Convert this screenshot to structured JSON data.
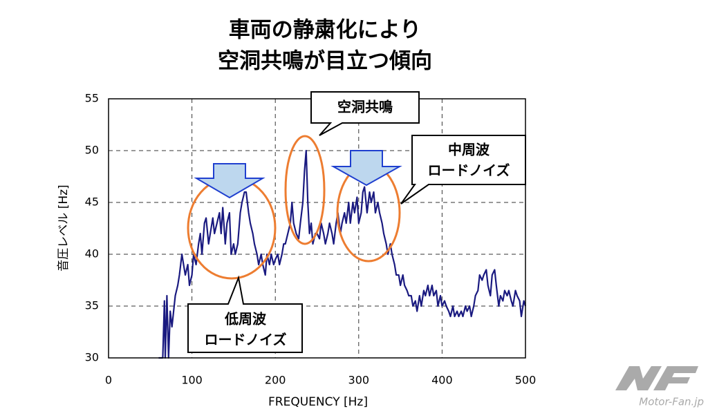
{
  "chart_data": {
    "type": "line",
    "title_lines": [
      "車両の静粛化により",
      "空洞共鳴が目立つ傾向"
    ],
    "x_label": "FREQUENCY [Hz]",
    "y_label": "音圧レベル [Hz]",
    "annotations": [
      {
        "lines": [
          "空洞共鳴"
        ]
      },
      {
        "lines": [
          "中周波",
          "ロードノイズ"
        ]
      },
      {
        "lines": [
          "低周波",
          "ロードノイズ"
        ]
      }
    ],
    "watermark": "Motor-Fan.jp",
    "color": "#1a1a80",
    "grid": true,
    "xlim": [
      0,
      500
    ],
    "xticks": [
      0,
      100,
      200,
      300,
      400,
      500
    ],
    "ylim": [
      30,
      55
    ],
    "yticks": [
      30,
      35,
      40,
      45,
      50,
      55
    ],
    "x": [
      60,
      65,
      67,
      68,
      70,
      72,
      74,
      76,
      80,
      83,
      85,
      88,
      90,
      92,
      95,
      97,
      100,
      102,
      105,
      108,
      110,
      112,
      115,
      117,
      120,
      122,
      125,
      127,
      130,
      133,
      135,
      137,
      140,
      142,
      145,
      147,
      150,
      152,
      155,
      158,
      160,
      163,
      165,
      168,
      170,
      173,
      175,
      178,
      180,
      183,
      185,
      188,
      190,
      193,
      195,
      198,
      200,
      203,
      205,
      208,
      210,
      212,
      215,
      218,
      220,
      222,
      225,
      228,
      230,
      233,
      235,
      237,
      239,
      241,
      243,
      245,
      248,
      250,
      253,
      255,
      258,
      260,
      263,
      265,
      268,
      270,
      273,
      275,
      278,
      280,
      283,
      285,
      288,
      290,
      293,
      295,
      298,
      300,
      303,
      305,
      307,
      310,
      313,
      315,
      318,
      320,
      323,
      325,
      328,
      330,
      333,
      335,
      338,
      340,
      343,
      345,
      348,
      350,
      353,
      355,
      358,
      360,
      363,
      365,
      368,
      370,
      373,
      375,
      378,
      380,
      383,
      385,
      388,
      390,
      393,
      395,
      398,
      400,
      403,
      405,
      408,
      410,
      413,
      415,
      418,
      420,
      423,
      425,
      428,
      430,
      433,
      435,
      438,
      440,
      443,
      445,
      448,
      450,
      453,
      455,
      458,
      460,
      463,
      465,
      468,
      470,
      473,
      475,
      478,
      480,
      483,
      485,
      488,
      490,
      493,
      495,
      498,
      500
    ],
    "values": [
      30,
      30,
      35.5,
      30,
      36,
      30,
      34.5,
      33,
      36,
      37,
      38,
      40,
      39,
      38,
      39,
      37,
      38,
      40,
      39,
      41,
      42,
      40,
      43,
      43.5,
      41,
      42,
      43.5,
      42,
      43,
      44,
      42,
      44.5,
      41,
      43,
      44,
      40,
      41,
      40,
      41,
      44,
      45,
      46,
      46,
      44,
      43,
      42,
      41,
      40,
      39,
      40,
      39,
      38,
      40,
      39,
      40,
      39,
      39.5,
      40,
      39,
      40,
      41,
      41,
      42,
      43,
      45,
      43,
      42,
      41.5,
      43,
      45,
      48,
      50,
      45,
      42,
      43,
      41,
      42,
      42,
      41.5,
      43,
      42,
      41,
      42,
      43,
      42,
      41,
      43,
      44,
      42,
      43,
      44,
      43,
      45,
      43,
      45,
      44,
      45.5,
      43,
      44,
      46,
      46.5,
      44,
      46,
      45,
      46,
      44,
      45,
      44,
      43,
      42,
      41,
      40,
      41,
      40,
      39,
      38,
      38,
      37,
      38,
      37,
      36.5,
      36,
      36,
      35,
      35.5,
      34.5,
      36,
      35,
      36.5,
      36,
      37,
      36,
      37,
      36,
      36.5,
      35,
      36,
      35,
      35.5,
      35,
      34.5,
      34,
      35,
      34,
      34.5,
      34,
      34.5,
      34,
      35,
      34.5,
      35,
      34,
      35,
      36,
      36.5,
      38,
      37.5,
      38,
      38.5,
      37,
      36,
      38,
      38.5,
      37,
      35,
      36,
      35.5,
      36.5,
      36,
      36.5,
      35.5,
      35,
      36.5,
      36,
      35.5,
      34,
      35.5,
      35
    ]
  }
}
